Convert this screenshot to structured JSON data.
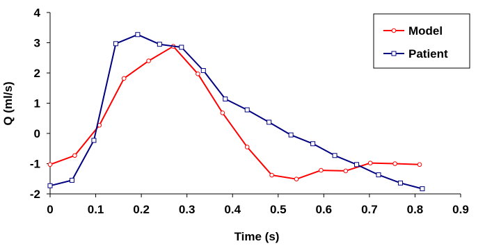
{
  "chart_data": {
    "type": "line",
    "xlabel": "Time (s)",
    "ylabel": "Q (ml/s)",
    "xlim": [
      0,
      0.9
    ],
    "ylim": [
      -2,
      4
    ],
    "xticks": [
      "0",
      "0.1",
      "0.2",
      "0.3",
      "0.4",
      "0.5",
      "0.6",
      "0.7",
      "0.8",
      "0.9"
    ],
    "yticks": [
      "4",
      "3",
      "2",
      "1",
      "0",
      "-1",
      "-2"
    ],
    "grid": false,
    "legend_position": "top-right",
    "series": [
      {
        "name": "Model",
        "color": "#ff0000",
        "marker": "circle",
        "x": [
          0.0,
          0.054,
          0.108,
          0.162,
          0.216,
          0.27,
          0.324,
          0.378,
          0.432,
          0.486,
          0.54,
          0.594,
          0.648,
          0.702,
          0.756,
          0.81
        ],
        "y": [
          -1.03,
          -0.73,
          0.27,
          1.82,
          2.4,
          2.88,
          1.97,
          0.68,
          -0.45,
          -1.38,
          -1.51,
          -1.22,
          -1.24,
          -0.98,
          -1.0,
          -1.03
        ]
      },
      {
        "name": "Patient",
        "color": "#000080",
        "marker": "square",
        "x": [
          0.0,
          0.048,
          0.096,
          0.144,
          0.192,
          0.24,
          0.288,
          0.336,
          0.384,
          0.432,
          0.48,
          0.528,
          0.576,
          0.624,
          0.672,
          0.72,
          0.768,
          0.816
        ],
        "y": [
          -1.73,
          -1.55,
          -0.23,
          2.97,
          3.27,
          2.95,
          2.85,
          2.08,
          1.14,
          0.78,
          0.37,
          -0.05,
          -0.34,
          -0.73,
          -1.03,
          -1.37,
          -1.64,
          -1.83
        ]
      }
    ]
  }
}
